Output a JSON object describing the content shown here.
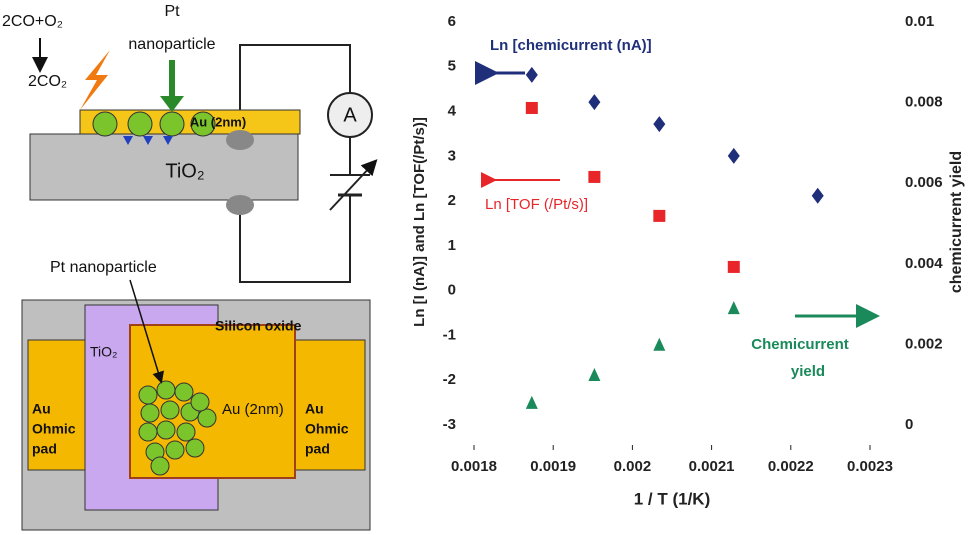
{
  "diagrams": {
    "device": {
      "reaction": "2CO+O₂",
      "product": "2CO₂",
      "pt_label": [
        "Pt",
        "nanoparticle"
      ],
      "ammeter": "A",
      "metal": "Au (2nm)",
      "substrate": "TiO₂"
    },
    "layout": {
      "pt_label": "Pt nanoparticle",
      "oxide": "Silicon oxide",
      "tio2": "TiO₂",
      "metal": "Au (2nm)",
      "left_pad": [
        "Au",
        "Ohmic",
        "pad"
      ],
      "right_pad": [
        "Au",
        "Ohmic",
        "pad"
      ]
    }
  },
  "chart_data": {
    "type": "scatter",
    "xlabel": "1 / T (1/K)",
    "ylabel": "Ln [I (nA)] and Ln [TOF(/Pt/s)]",
    "y2label": "chemicurrent yield",
    "xlim": [
      0.0018,
      0.0023
    ],
    "xticks": [
      0.0018,
      0.0019,
      0.002,
      0.0021,
      0.0022,
      0.0023
    ],
    "ylim": [
      -3,
      6
    ],
    "yticks": [
      -3,
      -2,
      -1,
      0,
      1,
      2,
      3,
      4,
      5,
      6
    ],
    "y2lim": [
      0,
      0.01
    ],
    "y2ticks": [
      0,
      0.002,
      0.004,
      0.006,
      0.008,
      0.01
    ],
    "series": [
      {
        "name": "Ln [chemicurrent (nA)]",
        "color": "#1f2f7a",
        "marker": "diamond",
        "x": [
          0.001873,
          0.001952,
          0.002034,
          0.002128,
          0.002234
        ],
        "values": [
          4.82,
          4.21,
          3.72,
          3.01,
          2.12
        ]
      },
      {
        "name": "Ln [TOF (/Pt/s)]",
        "color": "#e8262a",
        "marker": "square",
        "x": [
          0.001873,
          0.001952,
          0.002034,
          0.002128
        ],
        "values": [
          4.08,
          2.54,
          1.67,
          0.53
        ]
      },
      {
        "name": [
          "Chemicurrent",
          "yield"
        ],
        "color": "#1a8a5a",
        "marker": "triangle",
        "axis": "y2",
        "x": [
          0.001873,
          0.001952,
          0.002034,
          0.002128
        ],
        "values": [
          0.00055,
          0.00124,
          0.00199,
          0.0029
        ]
      }
    ]
  }
}
